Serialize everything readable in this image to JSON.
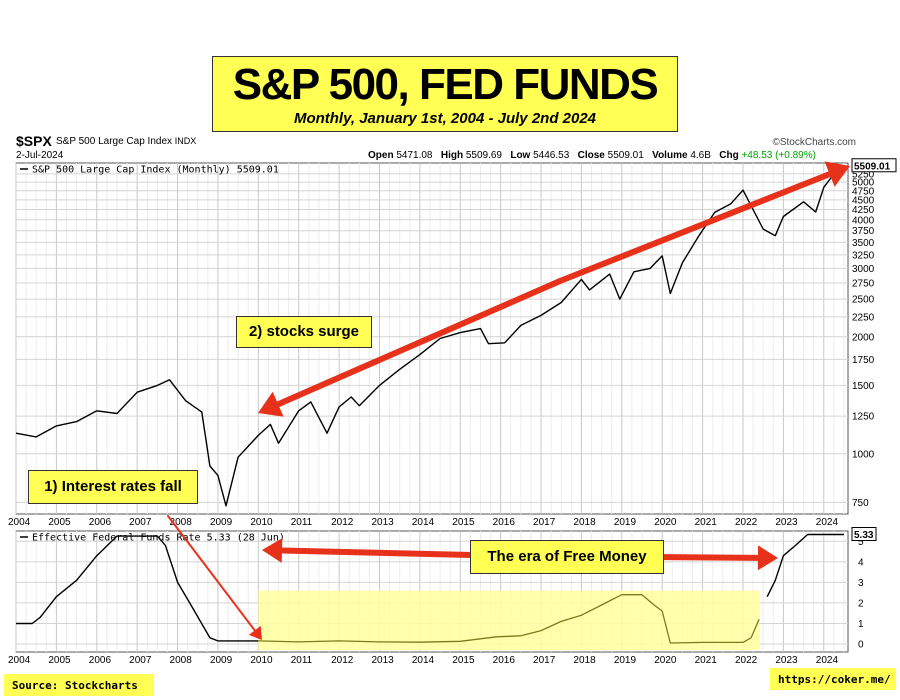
{
  "header": {
    "title": "S&P 500, FED FUNDS",
    "subtitle": "Monthly, January 1st, 2004 - July 2nd 2024",
    "symbol": "$SPX",
    "symbol_name": "S&P 500 Large Cap Index",
    "exchange": "INDX",
    "provider": "©StockCharts.com",
    "date": "2-Jul-2024",
    "open_label": "Open",
    "open": "5471.08",
    "high_label": "High",
    "high": "5509.69",
    "low_label": "Low",
    "low": "5446.53",
    "close_label": "Close",
    "close": "5509.01",
    "volume_label": "Volume",
    "volume": "4.6B",
    "chg_label": "Chg",
    "chg": "+48.53 (+0.89%)"
  },
  "annotations": {
    "stocks_surge": "2) stocks surge",
    "rates_fall": "1) Interest rates fall",
    "free_money": "The era of Free Money"
  },
  "footer": {
    "source": "Source: Stockcharts",
    "url": "https://coker.me/"
  },
  "colors": {
    "highlight": "#ffff54",
    "arrow": "#e8311b",
    "line": "#000000",
    "grid": "#d4d4d4",
    "free_money_band": "#ffff9e"
  },
  "chart_data": [
    {
      "type": "line",
      "legend": "S&P 500 Large Cap Index (Monthly) 5509.01",
      "last_value_label": "5509.01",
      "scale": "log",
      "ylim": [
        700,
        5600
      ],
      "xlim": [
        "2004-01",
        "2024-07"
      ],
      "x_ticks": [
        "2004",
        "2005",
        "2006",
        "2007",
        "2008",
        "2009",
        "2010",
        "2011",
        "2012",
        "2013",
        "2014",
        "2015",
        "2016",
        "2017",
        "2018",
        "2019",
        "2020",
        "2021",
        "2022",
        "2023",
        "2024"
      ],
      "y_ticks": [
        750,
        1000,
        1250,
        1500,
        1750,
        2000,
        2250,
        2500,
        2750,
        3000,
        3250,
        3500,
        3750,
        4000,
        4250,
        4500,
        4750,
        5000,
        5250
      ],
      "grid": true,
      "series": [
        {
          "name": "S&P 500",
          "x": [
            2004.0,
            2004.5,
            2005.0,
            2005.5,
            2006.0,
            2006.5,
            2007.0,
            2007.5,
            2007.8,
            2008.2,
            2008.6,
            2008.8,
            2009.0,
            2009.2,
            2009.5,
            2010.0,
            2010.3,
            2010.5,
            2011.0,
            2011.3,
            2011.7,
            2012.0,
            2012.3,
            2012.5,
            2013.0,
            2013.5,
            2014.0,
            2014.5,
            2015.0,
            2015.5,
            2015.7,
            2016.1,
            2016.5,
            2017.0,
            2017.5,
            2018.0,
            2018.2,
            2018.7,
            2018.95,
            2019.3,
            2019.7,
            2020.0,
            2020.2,
            2020.5,
            2020.9,
            2021.3,
            2021.7,
            2022.0,
            2022.5,
            2022.8,
            2023.0,
            2023.5,
            2023.8,
            2024.0,
            2024.25,
            2024.5
          ],
          "values": [
            1130,
            1105,
            1180,
            1210,
            1290,
            1270,
            1440,
            1500,
            1550,
            1370,
            1280,
            930,
            880,
            735,
            980,
            1115,
            1190,
            1065,
            1290,
            1360,
            1130,
            1320,
            1400,
            1330,
            1500,
            1650,
            1800,
            1980,
            2050,
            2100,
            1920,
            1930,
            2140,
            2270,
            2450,
            2810,
            2640,
            2900,
            2500,
            2940,
            3000,
            3230,
            2585,
            3100,
            3630,
            4180,
            4400,
            4770,
            3785,
            3640,
            4080,
            4450,
            4190,
            4850,
            5250,
            5509
          ]
        }
      ]
    },
    {
      "type": "area",
      "legend": "Effective Federal Funds Rate 5.33 (28 Jun)",
      "last_value_label": "5.33",
      "ylim": [
        0,
        5.5
      ],
      "xlim": [
        "2004-01",
        "2024-07"
      ],
      "x_ticks": [
        "2004",
        "2005",
        "2006",
        "2007",
        "2008",
        "2009",
        "2010",
        "2011",
        "2012",
        "2013",
        "2014",
        "2015",
        "2016",
        "2017",
        "2018",
        "2019",
        "2020",
        "2021",
        "2022",
        "2023",
        "2024"
      ],
      "y_ticks": [
        0,
        1,
        2,
        3,
        4,
        5
      ],
      "grid": true,
      "shaded_period": [
        "2010-01",
        "2022-06"
      ],
      "series": [
        {
          "name": "Fed Funds",
          "x": [
            2004.0,
            2004.4,
            2004.6,
            2005.0,
            2005.5,
            2006.0,
            2006.5,
            2007.5,
            2007.7,
            2008.0,
            2008.3,
            2008.8,
            2009.0,
            2010.0,
            2011.0,
            2012.0,
            2013.0,
            2014.0,
            2015.0,
            2015.9,
            2016.5,
            2017.0,
            2017.5,
            2018.0,
            2018.5,
            2019.0,
            2019.5,
            2019.8,
            2020.0,
            2020.2,
            2021.0,
            2022.0,
            2022.2,
            2022.4,
            2022.6,
            2022.8,
            2023.0,
            2023.3,
            2023.6,
            2024.0,
            2024.5
          ],
          "values": [
            1.0,
            1.0,
            1.3,
            2.3,
            3.1,
            4.3,
            5.25,
            5.25,
            4.8,
            3.0,
            2.0,
            0.3,
            0.15,
            0.15,
            0.1,
            0.15,
            0.1,
            0.09,
            0.13,
            0.35,
            0.4,
            0.65,
            1.1,
            1.4,
            1.9,
            2.4,
            2.4,
            1.9,
            1.6,
            0.05,
            0.08,
            0.08,
            0.3,
            1.2,
            2.3,
            3.1,
            4.3,
            4.8,
            5.33,
            5.33,
            5.33
          ]
        }
      ]
    }
  ]
}
